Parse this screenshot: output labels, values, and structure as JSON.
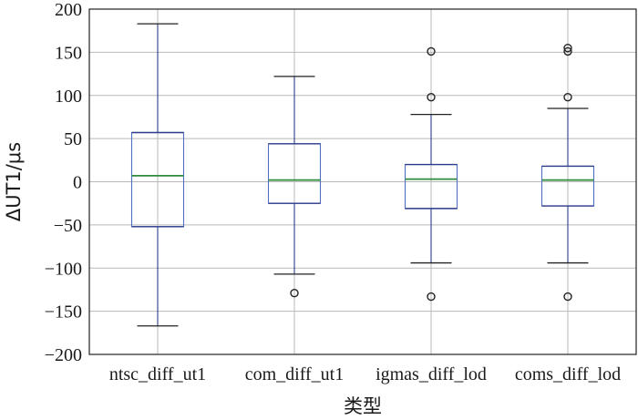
{
  "chart_data": {
    "type": "box",
    "xlabel": "类型",
    "ylabel": "ΔUT1/μs",
    "ylim": [
      -200,
      200
    ],
    "yticks": [
      -200,
      -150,
      -100,
      -50,
      0,
      50,
      100,
      150,
      200
    ],
    "grid": true,
    "categories": [
      "ntsc_diff_ut1",
      "com_diff_ut1",
      "igmas_diff_lod",
      "coms_diff_lod"
    ],
    "boxes": [
      {
        "name": "ntsc_diff_ut1",
        "whisker_low": -167,
        "q1": -52,
        "median": 7,
        "q3": 57,
        "whisker_high": 183,
        "outliers": []
      },
      {
        "name": "com_diff_ut1",
        "whisker_low": -107,
        "q1": -25,
        "median": 2,
        "q3": 44,
        "whisker_high": 122,
        "outliers": [
          -129
        ]
      },
      {
        "name": "igmas_diff_lod",
        "whisker_low": -94,
        "q1": -31,
        "median": 3,
        "q3": 20,
        "whisker_high": 78,
        "outliers": [
          151,
          98,
          -133
        ]
      },
      {
        "name": "coms_diff_lod",
        "whisker_low": -94,
        "q1": -28,
        "median": 2,
        "q3": 18,
        "whisker_high": 85,
        "outliers": [
          155,
          151,
          98,
          -133
        ]
      }
    ],
    "colors": {
      "box": "#4f6fc4",
      "whisker": "#2e3c8c",
      "cap": "#222222",
      "median": "#2e8b3c",
      "outlier": "#222222",
      "grid": "#b9b9b9",
      "frame": "#222222"
    }
  }
}
